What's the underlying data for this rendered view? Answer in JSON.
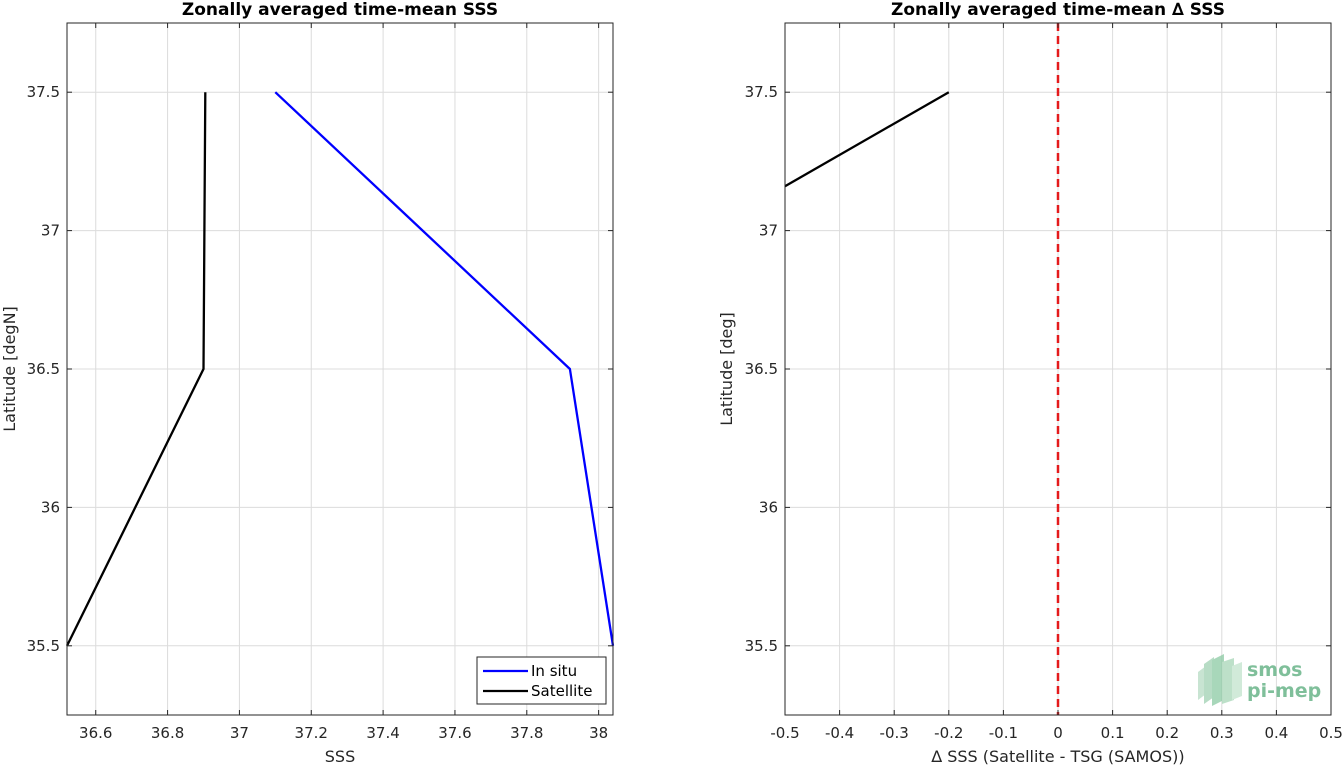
{
  "chart_data": [
    {
      "type": "line",
      "title": "Zonally averaged time-mean SSS",
      "xlabel": "SSS",
      "ylabel": "Latitude [degN]",
      "xlim": [
        36.52,
        38.04
      ],
      "ylim": [
        35.25,
        37.75
      ],
      "xticks": [
        36.6,
        36.8,
        37,
        37.2,
        37.4,
        37.6,
        37.8,
        38
      ],
      "xtick_labels": [
        "36.6",
        "36.8",
        "37",
        "37.2",
        "37.4",
        "37.6",
        "37.8",
        "38"
      ],
      "yticks": [
        35.5,
        36,
        36.5,
        37,
        37.5
      ],
      "ytick_labels": [
        "35.5",
        "36",
        "36.5",
        "37",
        "37.5"
      ],
      "grid": true,
      "legend_position": "bottom-right",
      "series": [
        {
          "name": "In situ",
          "color": "#0000ff",
          "x": [
            38.04,
            37.92,
            37.1
          ],
          "y": [
            35.5,
            36.5,
            37.5
          ]
        },
        {
          "name": "Satellite",
          "color": "#000000",
          "x": [
            36.52,
            36.9,
            36.905
          ],
          "y": [
            35.5,
            36.5,
            37.5
          ]
        }
      ]
    },
    {
      "type": "line",
      "title": "Zonally averaged time-mean ∆ SSS",
      "xlabel": "∆ SSS (Satellite - TSG (SAMOS))",
      "ylabel": "Latitude [deg]",
      "xlim": [
        -0.5,
        0.5
      ],
      "ylim": [
        35.25,
        37.75
      ],
      "xticks": [
        -0.5,
        -0.4,
        -0.3,
        -0.2,
        -0.1,
        0,
        0.1,
        0.2,
        0.3,
        0.4,
        0.5
      ],
      "xtick_labels": [
        "-0.5",
        "-0.4",
        "-0.3",
        "-0.2",
        "-0.1",
        "0",
        "0.1",
        "0.2",
        "0.3",
        "0.4",
        "0.5"
      ],
      "yticks": [
        35.5,
        36,
        36.5,
        37,
        37.5
      ],
      "ytick_labels": [
        "35.5",
        "36",
        "36.5",
        "37",
        "37.5"
      ],
      "grid": true,
      "reference_line": {
        "x": 0,
        "color": "#e41a1c",
        "style": "dashed"
      },
      "series": [
        {
          "color": "#000000",
          "x": [
            -0.5,
            -0.2
          ],
          "y": [
            37.16,
            37.5
          ]
        }
      ]
    }
  ],
  "logo": {
    "line1": "smos",
    "line2": "pi-mep"
  }
}
